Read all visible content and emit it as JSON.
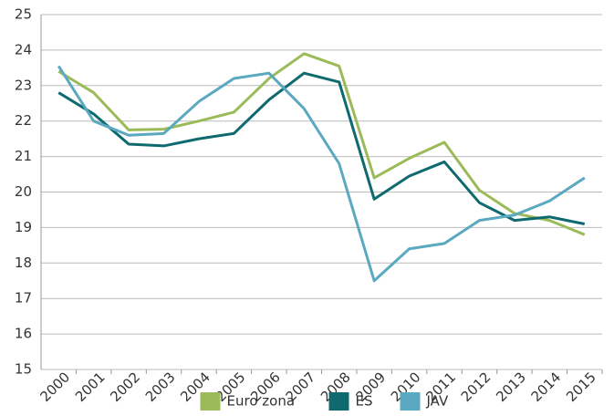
{
  "chart_data": {
    "type": "line",
    "categories": [
      "2000",
      "2001",
      "2002",
      "2003",
      "2004",
      "2005",
      "2006",
      "2007",
      "2008",
      "2009",
      "2010",
      "2011",
      "2012",
      "2013",
      "2014",
      "2015"
    ],
    "series": [
      {
        "name": "Euro zona",
        "color": "#9bbb59",
        "values": [
          23.4,
          22.8,
          21.75,
          21.77,
          22.0,
          22.25,
          23.2,
          23.9,
          23.55,
          20.4,
          20.95,
          21.4,
          20.05,
          19.4,
          19.2,
          18.8
        ]
      },
      {
        "name": "ES",
        "color": "#0e6a6e",
        "values": [
          22.8,
          22.2,
          21.35,
          21.3,
          21.5,
          21.65,
          22.6,
          23.35,
          23.1,
          19.8,
          20.45,
          20.85,
          19.7,
          19.2,
          19.3,
          19.1
        ]
      },
      {
        "name": "JAV",
        "color": "#5aa9c0",
        "values": [
          23.55,
          22.0,
          21.6,
          21.65,
          22.55,
          23.2,
          23.35,
          22.35,
          20.8,
          17.5,
          18.4,
          18.55,
          19.2,
          19.35,
          19.75,
          20.4
        ]
      }
    ],
    "ylim": [
      15,
      25
    ],
    "yticks": [
      15,
      16,
      17,
      18,
      19,
      20,
      21,
      22,
      23,
      24,
      25
    ],
    "grid": true,
    "legend": "bottom"
  }
}
